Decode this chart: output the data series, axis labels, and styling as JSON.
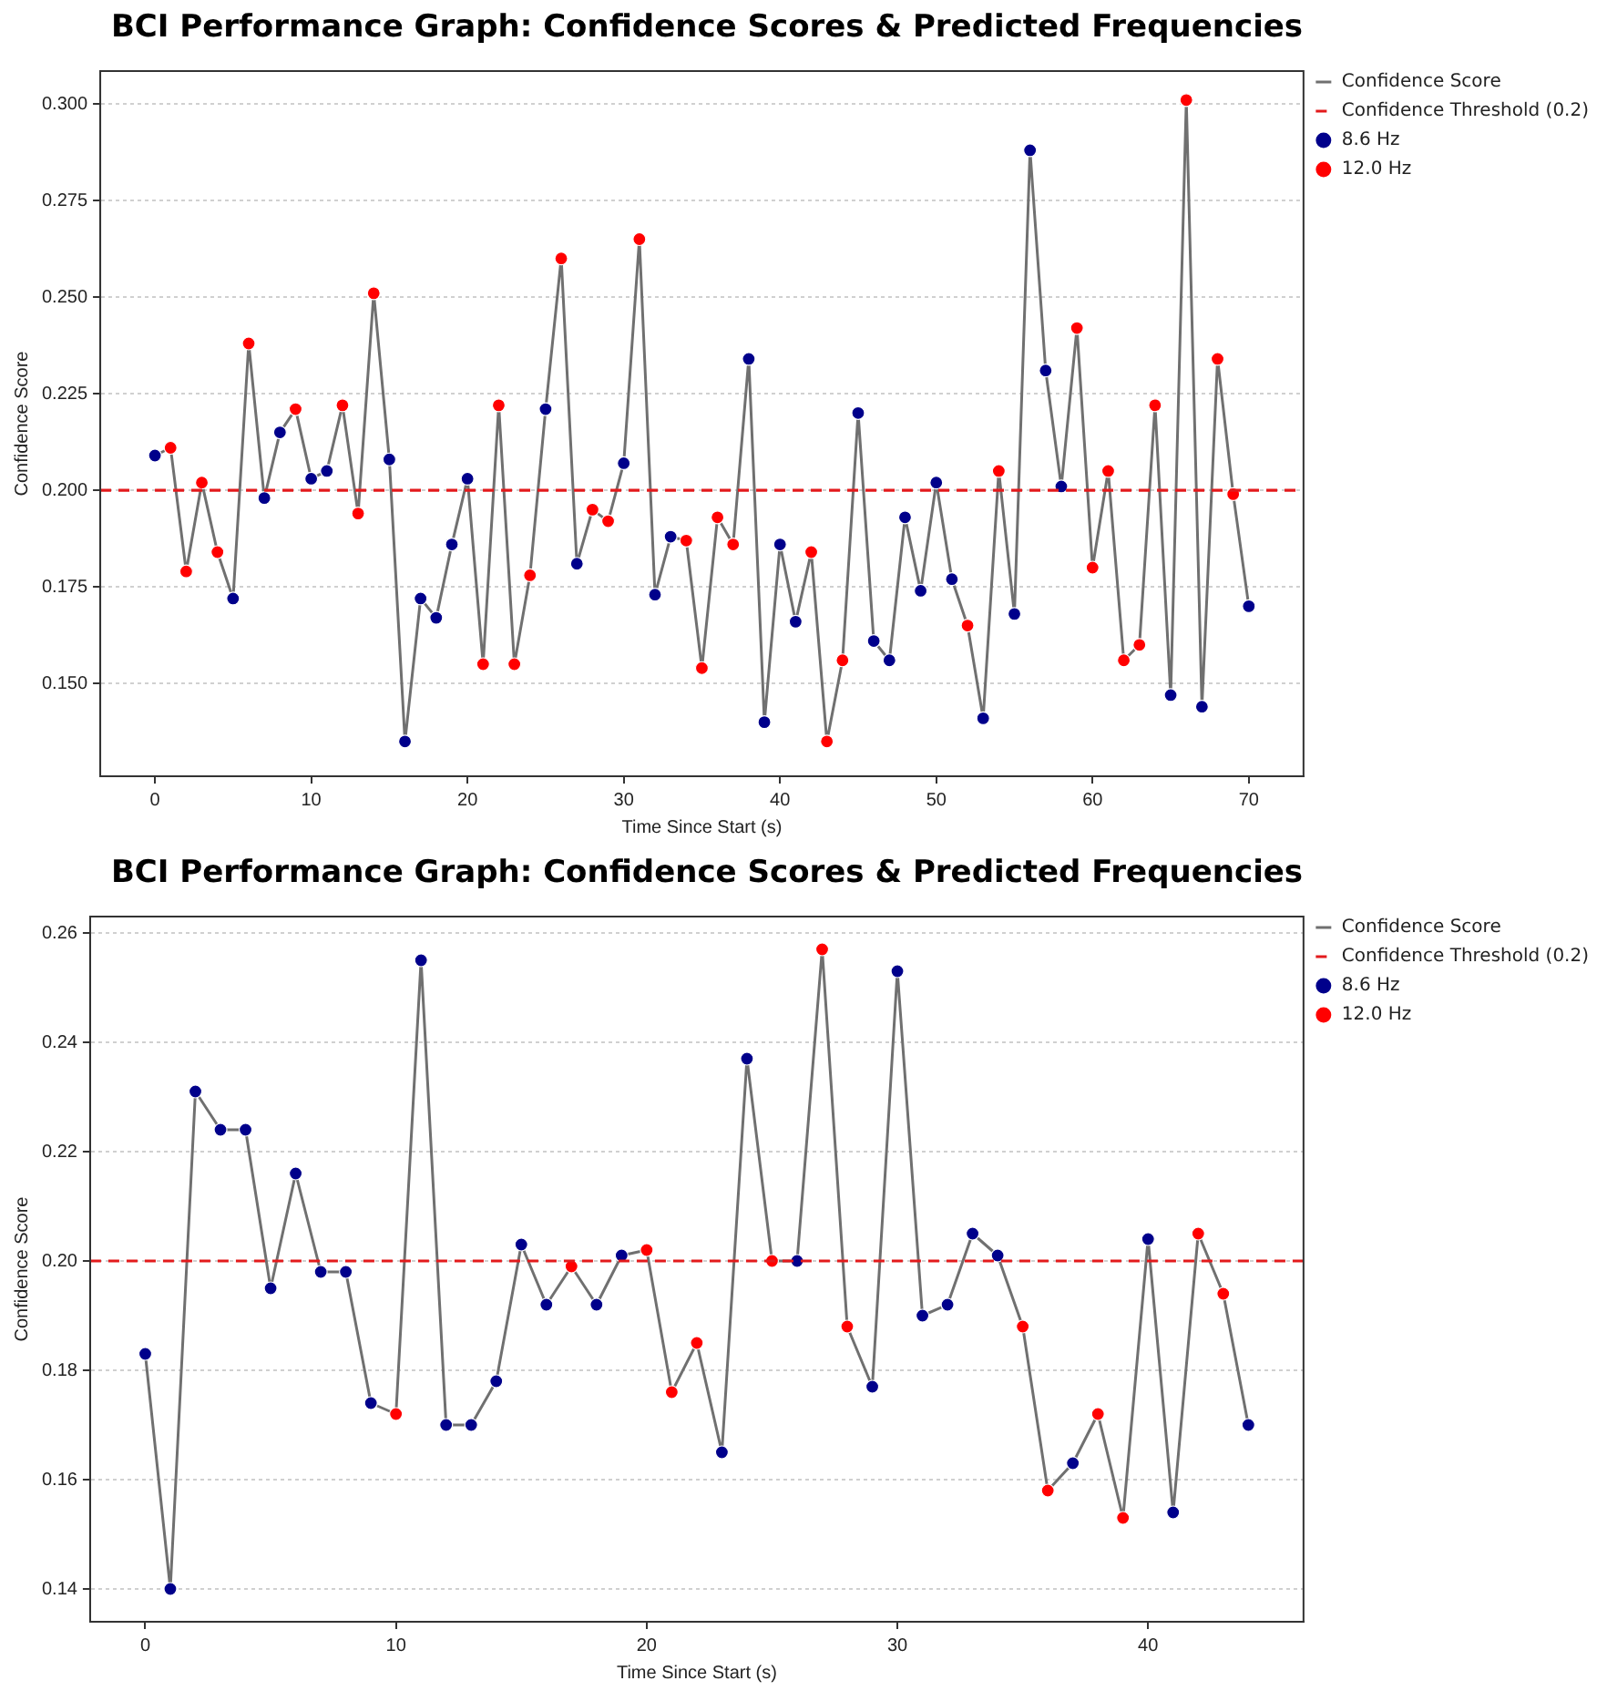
{
  "chart_data": [
    {
      "type": "line",
      "title": "BCI Performance Graph: Confidence Scores & Predicted Frequencies",
      "xlabel": "Time Since Start (s)",
      "ylabel": "Confidence Score",
      "xlim": [
        -3.5,
        73.5
      ],
      "ylim": [
        0.126,
        0.3085
      ],
      "xticks": [
        0,
        10,
        20,
        30,
        40,
        50,
        60,
        70
      ],
      "yticks": [
        {
          "value": 0.15,
          "label": "0.150"
        },
        {
          "value": 0.175,
          "label": "0.175"
        },
        {
          "value": 0.2,
          "label": "0.200"
        },
        {
          "value": 0.225,
          "label": "0.225"
        },
        {
          "value": 0.25,
          "label": "0.250"
        },
        {
          "value": 0.275,
          "label": "0.275"
        },
        {
          "value": 0.3,
          "label": "0.300"
        }
      ],
      "grid": "y",
      "legend": "right",
      "ref_lines": [
        {
          "axis": "y",
          "value": 0.2,
          "label": "Confidence Threshold (0.2)",
          "color": "#e31a1c",
          "line_style": "dashed"
        }
      ],
      "series": [
        {
          "name": "Confidence Score",
          "type": "line",
          "color": "#707070",
          "marker": "none",
          "x": [
            0,
            1,
            2,
            3,
            4,
            5,
            6,
            7,
            8,
            9,
            10,
            11,
            12,
            13,
            14,
            15,
            16,
            17,
            18,
            19,
            20,
            21,
            22,
            23,
            24,
            25,
            26,
            27,
            28,
            29,
            30,
            31,
            32,
            33,
            34,
            35,
            36,
            37,
            38,
            39,
            40,
            41,
            42,
            43,
            44,
            45,
            46,
            47,
            48,
            49,
            50,
            51,
            52,
            53,
            54,
            55,
            56,
            57,
            58,
            59,
            60,
            61,
            62,
            63,
            64,
            65,
            66,
            67,
            68,
            69,
            70
          ],
          "values": [
            0.209,
            0.211,
            0.179,
            0.202,
            0.184,
            0.172,
            0.238,
            0.198,
            0.215,
            0.221,
            0.203,
            0.205,
            0.222,
            0.194,
            0.251,
            0.208,
            0.135,
            0.172,
            0.167,
            0.186,
            0.203,
            0.155,
            0.222,
            0.155,
            0.178,
            0.221,
            0.26,
            0.181,
            0.195,
            0.192,
            0.207,
            0.265,
            0.173,
            0.188,
            0.187,
            0.154,
            0.193,
            0.186,
            0.234,
            0.14,
            0.186,
            0.166,
            0.184,
            0.135,
            0.156,
            0.22,
            0.161,
            0.156,
            0.193,
            0.174,
            0.202,
            0.177,
            0.165,
            0.141,
            0.205,
            0.168,
            0.288,
            0.231,
            0.201,
            0.242,
            0.18,
            0.205,
            0.156,
            0.16,
            0.222,
            0.147,
            0.301,
            0.144,
            0.234,
            0.199,
            0.17
          ]
        },
        {
          "name": "8.6 Hz",
          "type": "scatter",
          "color": "#00008b",
          "marker": "circle",
          "x": [
            0,
            5,
            7,
            8,
            10,
            11,
            15,
            16,
            17,
            18,
            19,
            20,
            25,
            27,
            30,
            32,
            33,
            38,
            39,
            40,
            41,
            45,
            46,
            47,
            48,
            49,
            50,
            51,
            53,
            55,
            56,
            57,
            58,
            65,
            67,
            70
          ],
          "values": [
            0.209,
            0.172,
            0.198,
            0.215,
            0.203,
            0.205,
            0.208,
            0.135,
            0.172,
            0.167,
            0.186,
            0.203,
            0.221,
            0.181,
            0.207,
            0.173,
            0.188,
            0.234,
            0.14,
            0.186,
            0.166,
            0.22,
            0.161,
            0.156,
            0.193,
            0.174,
            0.202,
            0.177,
            0.141,
            0.168,
            0.288,
            0.231,
            0.201,
            0.147,
            0.144,
            0.17
          ]
        },
        {
          "name": "12.0 Hz",
          "type": "scatter",
          "color": "#ff0000",
          "marker": "circle",
          "x": [
            1,
            2,
            3,
            4,
            6,
            9,
            12,
            13,
            14,
            21,
            22,
            23,
            24,
            26,
            28,
            29,
            31,
            34,
            35,
            36,
            37,
            42,
            43,
            44,
            52,
            54,
            59,
            60,
            61,
            62,
            63,
            64,
            66,
            68,
            69
          ],
          "values": [
            0.211,
            0.179,
            0.202,
            0.184,
            0.238,
            0.221,
            0.222,
            0.194,
            0.251,
            0.155,
            0.222,
            0.155,
            0.178,
            0.26,
            0.195,
            0.192,
            0.265,
            0.187,
            0.154,
            0.193,
            0.186,
            0.184,
            0.135,
            0.156,
            0.165,
            0.205,
            0.242,
            0.18,
            0.205,
            0.156,
            0.16,
            0.222,
            0.301,
            0.234,
            0.199
          ]
        }
      ]
    },
    {
      "type": "line",
      "title": "BCI Performance Graph: Confidence Scores & Predicted Frequencies",
      "xlabel": "Time Since Start (s)",
      "ylabel": "Confidence Score",
      "xlim": [
        -2.2,
        46.2
      ],
      "ylim": [
        0.134,
        0.263
      ],
      "xticks": [
        0,
        10,
        20,
        30,
        40
      ],
      "yticks": [
        {
          "value": 0.14,
          "label": "0.14"
        },
        {
          "value": 0.16,
          "label": "0.16"
        },
        {
          "value": 0.18,
          "label": "0.18"
        },
        {
          "value": 0.2,
          "label": "0.20"
        },
        {
          "value": 0.22,
          "label": "0.22"
        },
        {
          "value": 0.24,
          "label": "0.24"
        },
        {
          "value": 0.26,
          "label": "0.26"
        }
      ],
      "grid": "y",
      "legend": "right",
      "ref_lines": [
        {
          "axis": "y",
          "value": 0.2,
          "label": "Confidence Threshold (0.2)",
          "color": "#e31a1c",
          "line_style": "dashed"
        }
      ],
      "series": [
        {
          "name": "Confidence Score",
          "type": "line",
          "color": "#707070",
          "marker": "none",
          "x": [
            0,
            1,
            2,
            3,
            4,
            5,
            6,
            7,
            8,
            9,
            10,
            11,
            12,
            13,
            14,
            15,
            16,
            17,
            18,
            19,
            20,
            21,
            22,
            23,
            24,
            25,
            26,
            27,
            28,
            29,
            30,
            31,
            32,
            33,
            34,
            35,
            36,
            37,
            38,
            39,
            40,
            41,
            42,
            43,
            44
          ],
          "values": [
            0.183,
            0.14,
            0.231,
            0.224,
            0.224,
            0.195,
            0.216,
            0.198,
            0.198,
            0.174,
            0.172,
            0.255,
            0.17,
            0.17,
            0.178,
            0.203,
            0.192,
            0.199,
            0.192,
            0.201,
            0.202,
            0.176,
            0.185,
            0.165,
            0.237,
            0.2,
            0.2,
            0.257,
            0.188,
            0.177,
            0.253,
            0.19,
            0.192,
            0.205,
            0.201,
            0.188,
            0.158,
            0.163,
            0.172,
            0.153,
            0.204,
            0.154,
            0.205,
            0.194,
            0.17
          ]
        },
        {
          "name": "8.6 Hz",
          "type": "scatter",
          "color": "#00008b",
          "marker": "circle",
          "x": [
            0,
            1,
            2,
            3,
            4,
            5,
            6,
            7,
            8,
            9,
            11,
            12,
            13,
            14,
            15,
            16,
            18,
            19,
            23,
            24,
            26,
            29,
            30,
            31,
            32,
            33,
            34,
            37,
            40,
            41,
            44
          ],
          "values": [
            0.183,
            0.14,
            0.231,
            0.224,
            0.224,
            0.195,
            0.216,
            0.198,
            0.198,
            0.174,
            0.255,
            0.17,
            0.17,
            0.178,
            0.203,
            0.192,
            0.192,
            0.201,
            0.165,
            0.237,
            0.2,
            0.177,
            0.253,
            0.19,
            0.192,
            0.205,
            0.201,
            0.163,
            0.204,
            0.154,
            0.17
          ]
        },
        {
          "name": "12.0 Hz",
          "type": "scatter",
          "color": "#ff0000",
          "marker": "circle",
          "x": [
            10,
            17,
            20,
            21,
            22,
            25,
            27,
            28,
            35,
            36,
            38,
            39,
            42,
            43
          ],
          "values": [
            0.172,
            0.199,
            0.202,
            0.176,
            0.185,
            0.2,
            0.257,
            0.188,
            0.188,
            0.158,
            0.172,
            0.153,
            0.205,
            0.194
          ]
        }
      ]
    }
  ]
}
